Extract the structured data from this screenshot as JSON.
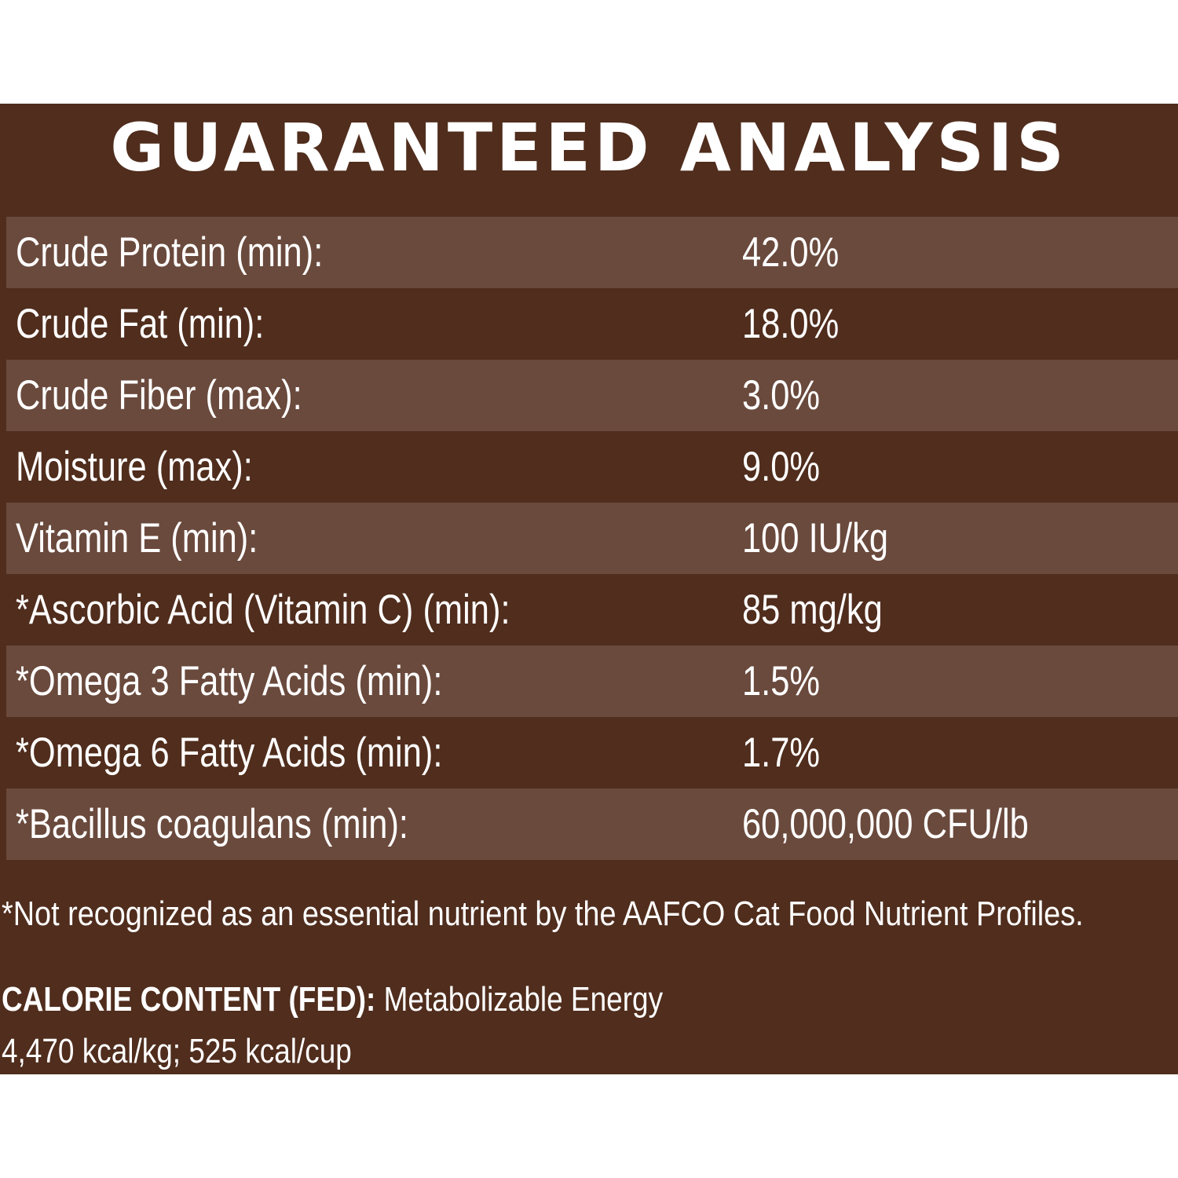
{
  "title": "GUARANTEED ANALYSIS",
  "rows": [
    {
      "label": "Crude Protein (min):",
      "value": "42.0%"
    },
    {
      "label": "Crude Fat (min):",
      "value": "18.0%"
    },
    {
      "label": "Crude Fiber (max):",
      "value": "3.0%"
    },
    {
      "label": "Moisture (max):",
      "value": "9.0%"
    },
    {
      "label": "Vitamin E (min):",
      "value": "100 IU/kg"
    },
    {
      "label": "*Ascorbic Acid (Vitamin C) (min):",
      "value": "85 mg/kg"
    },
    {
      "label": "*Omega 3 Fatty Acids (min):",
      "value": "1.5%"
    },
    {
      "label": "*Omega 6 Fatty Acids (min):",
      "value": "1.7%"
    },
    {
      "label": "*Bacillus coagulans (min):",
      "value": "60,000,000 CFU/lb"
    }
  ],
  "footnote": "*Not recognized as an essential nutrient by the AAFCO Cat Food Nutrient Profiles.",
  "calorie": {
    "label": "CALORIE CONTENT (FED):",
    "line1": "Metabolizable Energy",
    "line2": "4,470 kcal/kg; 525 kcal/cup"
  },
  "colors": {
    "background": "#502d1d",
    "row_shade": "#6a4a3d",
    "text": "#ffffff"
  }
}
